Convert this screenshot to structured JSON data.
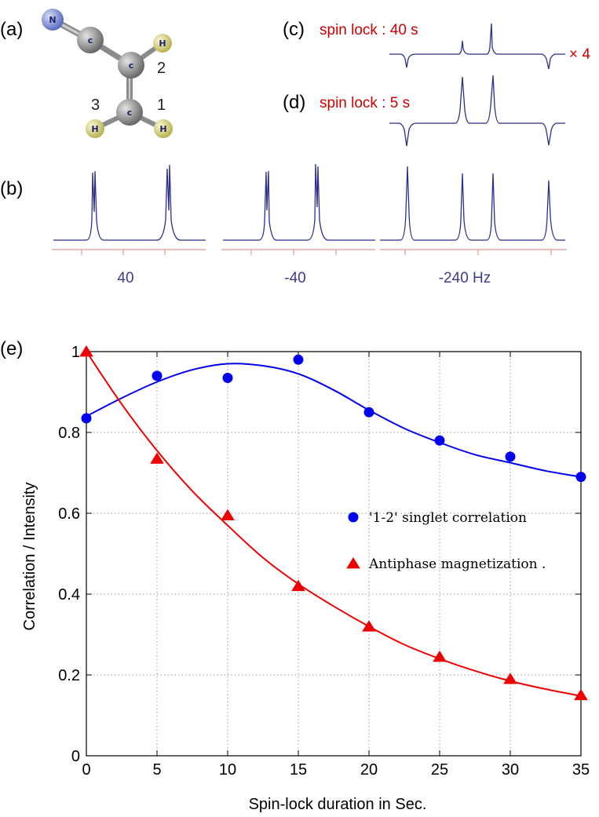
{
  "panel_labels": {
    "a": "(a)",
    "b": "(b)",
    "c": "(c)",
    "d": "(d)",
    "e": "(e)"
  },
  "molecule": {
    "atoms": {
      "nitrogen": "N",
      "carbon": "c",
      "hydrogen": "H"
    },
    "numbers": {
      "one": "1",
      "two": "2",
      "three": "3"
    },
    "colors": {
      "nitrogen": "#6e7fd0",
      "carbon": "#8d8d8d",
      "hydrogen": "#e0dc86"
    }
  },
  "spectra": {
    "c_label": "spin lock : 40 s",
    "d_label": "spin lock : 5 s",
    "scale_label": "× 4",
    "freq_labels": [
      "40",
      "-40",
      "-240 Hz"
    ],
    "line_color": "#2a2f8a",
    "axis_color": "#e09a8a",
    "label_color": "#d00000"
  },
  "chart_data": {
    "type": "scatter",
    "xlabel": "Spin-lock duration in Sec.",
    "ylabel": "Correlation / Intensity",
    "xlim": [
      0,
      35
    ],
    "ylim": [
      0,
      1
    ],
    "xticks": [
      0,
      5,
      10,
      15,
      20,
      25,
      30,
      35
    ],
    "yticks": [
      0,
      0.2,
      0.4,
      0.6,
      0.8,
      1
    ],
    "ytick_labels": [
      "0",
      "0.2",
      "0.4",
      "0.6",
      "0.8",
      "1"
    ],
    "grid": true,
    "legend_position": "center-right",
    "series": [
      {
        "name": "'1-2' singlet correlation",
        "marker": "circle",
        "color": "#0000ee",
        "x": [
          0,
          5,
          10,
          15,
          20,
          25,
          30,
          35
        ],
        "y": [
          0.835,
          0.94,
          0.935,
          0.98,
          0.85,
          0.78,
          0.74,
          0.69
        ],
        "fit_x": [
          0,
          2.5,
          5,
          7.5,
          10,
          12.5,
          15,
          17.5,
          20,
          22.5,
          25,
          27.5,
          30,
          32.5,
          35
        ],
        "fit_y": [
          0.84,
          0.885,
          0.925,
          0.955,
          0.97,
          0.965,
          0.945,
          0.905,
          0.855,
          0.81,
          0.775,
          0.745,
          0.725,
          0.705,
          0.69
        ]
      },
      {
        "name": "Antiphase magnetization .",
        "marker": "triangle",
        "color": "#ee0000",
        "x": [
          0,
          5,
          10,
          15,
          20,
          25,
          30,
          35
        ],
        "y": [
          1.0,
          0.735,
          0.595,
          0.42,
          0.32,
          0.245,
          0.19,
          0.15
        ],
        "fit_x": [
          0,
          2.5,
          5,
          7.5,
          10,
          12.5,
          15,
          17.5,
          20,
          22.5,
          25,
          27.5,
          30,
          32.5,
          35
        ],
        "fit_y": [
          1.0,
          0.87,
          0.755,
          0.655,
          0.57,
          0.49,
          0.425,
          0.37,
          0.32,
          0.275,
          0.24,
          0.21,
          0.185,
          0.165,
          0.148
        ]
      }
    ]
  }
}
